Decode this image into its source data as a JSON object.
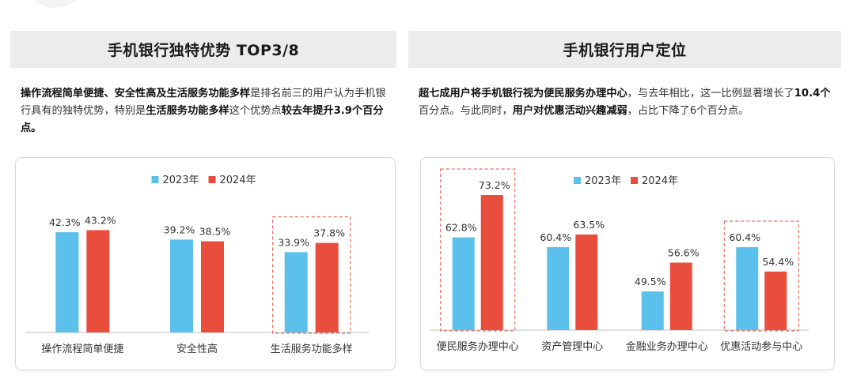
{
  "left_panel": {
    "title": "手机银行独特优势 TOP3/8",
    "desc": [
      {
        "text": "操作流程简单便捷、安全性高及生活服务功能多样",
        "bold": true
      },
      {
        "text": "是排名前三的用户认为手机银行具有的独特优势，特别是",
        "bold": false
      },
      {
        "text": "生活服务功能多样",
        "bold": true
      },
      {
        "text": "这个优势点",
        "bold": false
      },
      {
        "text": "较去年提升3.9个百分点。",
        "bold": true
      }
    ]
  },
  "right_panel": {
    "title": "手机银行用户定位",
    "desc": [
      {
        "text": "超七成用户将手机银行视为便民服务办理中心",
        "bold": true
      },
      {
        "text": "，与去年相比，这一比例显著增长了",
        "bold": false
      },
      {
        "text": "10.4个",
        "bold": true
      },
      {
        "text": "百分点。与此同时，",
        "bold": false
      },
      {
        "text": "用户对优惠活动兴趣减弱",
        "bold": true
      },
      {
        "text": "，占比下降了6个百分点。",
        "bold": false
      }
    ]
  },
  "colors": {
    "y2023": "#5bc0eb",
    "y2024": "#e94e3c",
    "highlight": "#e94e3c",
    "axis": "#bfbfbf"
  },
  "chart_data": [
    {
      "type": "bar",
      "title": "",
      "categories": [
        "操作流程简单便捷",
        "安全性高",
        "生活服务功能多样"
      ],
      "series": [
        {
          "name": "2023年",
          "values": [
            42.3,
            39.2,
            33.9
          ],
          "labels": [
            "42.3%",
            "39.2%",
            "33.9%"
          ]
        },
        {
          "name": "2024年",
          "values": [
            43.2,
            38.5,
            37.8
          ],
          "labels": [
            "43.2%",
            "38.5%",
            "37.8%"
          ]
        }
      ],
      "highlight_categories": [
        2
      ],
      "ylim": [
        0,
        60
      ],
      "legend_position": "top-center",
      "xlabel": "",
      "ylabel": ""
    },
    {
      "type": "bar",
      "title": "",
      "categories": [
        "便民服务办理中心",
        "资产管理中心",
        "金融业务办理中心",
        "优惠活动参与中心"
      ],
      "series": [
        {
          "name": "2023年",
          "values": [
            62.8,
            60.4,
            49.5,
            60.4
          ],
          "labels": [
            "62.8%",
            "60.4%",
            "49.5%",
            "60.4%"
          ]
        },
        {
          "name": "2024年",
          "values": [
            73.2,
            63.5,
            56.6,
            54.4
          ],
          "labels": [
            "73.2%",
            "63.5%",
            "56.6%",
            "54.4%"
          ]
        }
      ],
      "highlight_categories": [
        0,
        3
      ],
      "ylim": [
        40,
        80
      ],
      "legend_position": "top-center",
      "xlabel": "",
      "ylabel": ""
    }
  ]
}
